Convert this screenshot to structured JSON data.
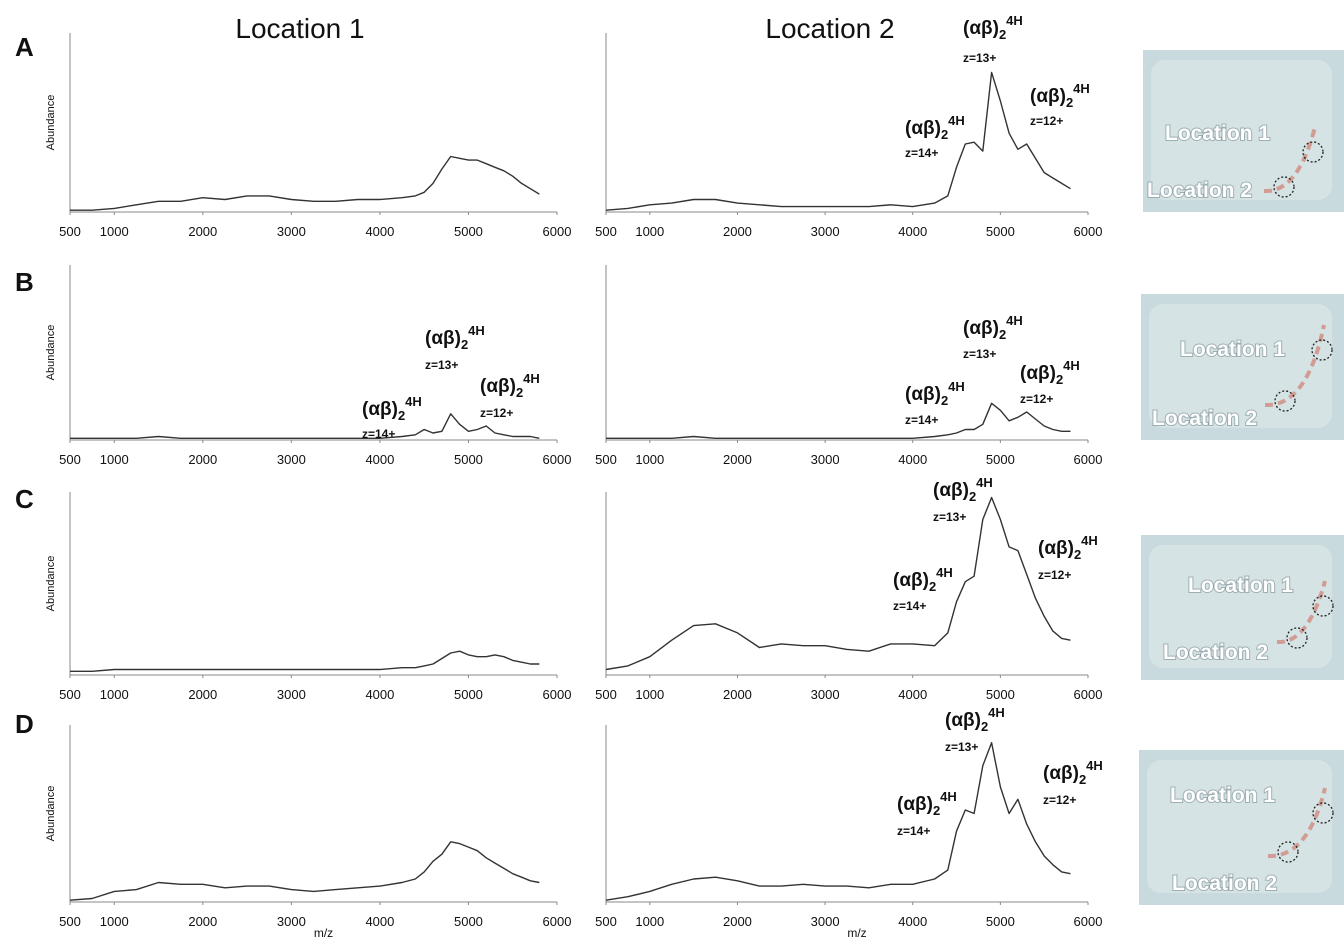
{
  "column_titles": [
    "Location 1",
    "Location 2"
  ],
  "row_labels": [
    "A",
    "B",
    "C",
    "D"
  ],
  "chart_data": [
    {
      "type": "line",
      "ylabel": "Abundance",
      "color": "#333333",
      "xlim": [
        500,
        6000
      ],
      "ylim": [
        0,
        100
      ],
      "xticks": [
        500,
        1000,
        2000,
        3000,
        4000,
        5000,
        6000
      ],
      "x": [
        500,
        750,
        1000,
        1250,
        1500,
        1750,
        2000,
        2250,
        2500,
        2750,
        3000,
        3250,
        3500,
        3750,
        4000,
        4250,
        4400,
        4500,
        4600,
        4700,
        4800,
        4900,
        5000,
        5100,
        5200,
        5300,
        5400,
        5500,
        5600,
        5700,
        5800
      ],
      "values": [
        1,
        1,
        2,
        4,
        6,
        6,
        8,
        7,
        9,
        9,
        7,
        6,
        6,
        7,
        7,
        8,
        9,
        11,
        16,
        24,
        31,
        30,
        29,
        29,
        27,
        25,
        23,
        20,
        16,
        13,
        10
      ]
    },
    {
      "type": "line",
      "color": "#333333",
      "xlim": [
        500,
        6000
      ],
      "ylim": [
        0,
        100
      ],
      "xticks": [
        500,
        1000,
        2000,
        3000,
        4000,
        5000,
        6000
      ],
      "x": [
        500,
        750,
        1000,
        1250,
        1500,
        1750,
        2000,
        2250,
        2500,
        2750,
        3000,
        3250,
        3500,
        3750,
        4000,
        4250,
        4400,
        4500,
        4600,
        4700,
        4800,
        4900,
        5000,
        5100,
        5200,
        5300,
        5400,
        5500,
        5600,
        5700,
        5800
      ],
      "values": [
        1,
        2,
        4,
        5,
        7,
        7,
        5,
        4,
        3,
        3,
        3,
        3,
        3,
        4,
        3,
        5,
        9,
        25,
        38,
        39,
        34,
        78,
        62,
        44,
        35,
        38,
        30,
        22,
        19,
        16,
        13
      ],
      "annotations": [
        {
          "text": "(αβ)",
          "sub": "2",
          "sup": "4H",
          "charge": "z=14+"
        },
        {
          "text": "(αβ)",
          "sub": "2",
          "sup": "4H",
          "charge": "z=13+"
        },
        {
          "text": "(αβ)",
          "sub": "2",
          "sup": "4H",
          "charge": "z=12+"
        }
      ]
    },
    {
      "type": "line",
      "ylabel": "Abundance",
      "color": "#333333",
      "xlim": [
        500,
        6000
      ],
      "ylim": [
        0,
        100
      ],
      "xticks": [
        500,
        1000,
        2000,
        3000,
        4000,
        5000,
        6000
      ],
      "x": [
        500,
        750,
        1000,
        1250,
        1500,
        1750,
        2000,
        2250,
        2500,
        2750,
        3000,
        3250,
        3500,
        3750,
        4000,
        4250,
        4400,
        4500,
        4600,
        4700,
        4800,
        4900,
        5000,
        5100,
        5200,
        5300,
        5400,
        5500,
        5600,
        5700,
        5800
      ],
      "values": [
        1,
        1,
        1,
        1,
        2,
        1,
        1,
        1,
        1,
        1,
        1,
        1,
        1,
        1,
        1,
        2,
        3,
        6,
        4,
        5,
        15,
        9,
        5,
        6,
        8,
        4,
        3,
        2,
        2,
        2,
        1
      ],
      "annotations": [
        {
          "text": "(αβ)",
          "sub": "2",
          "sup": "4H",
          "charge": "z=14+"
        },
        {
          "text": "(αβ)",
          "sub": "2",
          "sup": "4H",
          "charge": "z=13+"
        },
        {
          "text": "(αβ)",
          "sub": "2",
          "sup": "4H",
          "charge": "z=12+"
        }
      ]
    },
    {
      "type": "line",
      "color": "#333333",
      "xlim": [
        500,
        6000
      ],
      "ylim": [
        0,
        100
      ],
      "xticks": [
        500,
        1000,
        2000,
        3000,
        4000,
        5000,
        6000
      ],
      "x": [
        500,
        750,
        1000,
        1250,
        1500,
        1750,
        2000,
        2250,
        2500,
        2750,
        3000,
        3250,
        3500,
        3750,
        4000,
        4250,
        4400,
        4500,
        4600,
        4700,
        4800,
        4900,
        5000,
        5100,
        5200,
        5300,
        5400,
        5500,
        5600,
        5700,
        5800
      ],
      "values": [
        1,
        1,
        1,
        1,
        2,
        1,
        1,
        1,
        1,
        1,
        1,
        1,
        1,
        1,
        1,
        2,
        3,
        4,
        6,
        6,
        9,
        21,
        17,
        11,
        13,
        16,
        12,
        8,
        6,
        5,
        5
      ],
      "annotations": [
        {
          "text": "(αβ)",
          "sub": "2",
          "sup": "4H",
          "charge": "z=14+"
        },
        {
          "text": "(αβ)",
          "sub": "2",
          "sup": "4H",
          "charge": "z=13+"
        },
        {
          "text": "(αβ)",
          "sub": "2",
          "sup": "4H",
          "charge": "z=12+"
        }
      ]
    },
    {
      "type": "line",
      "ylabel": "Abundance",
      "color": "#333333",
      "xlim": [
        500,
        6000
      ],
      "ylim": [
        0,
        100
      ],
      "xticks": [
        500,
        1000,
        2000,
        3000,
        4000,
        5000,
        6000
      ],
      "x": [
        500,
        750,
        1000,
        1250,
        1500,
        1750,
        2000,
        2250,
        2500,
        2750,
        3000,
        3250,
        3500,
        3750,
        4000,
        4250,
        4400,
        4500,
        4600,
        4700,
        4800,
        4900,
        5000,
        5100,
        5200,
        5300,
        5400,
        5500,
        5600,
        5700,
        5800
      ],
      "values": [
        2,
        2,
        3,
        3,
        3,
        3,
        3,
        3,
        3,
        3,
        3,
        3,
        3,
        3,
        3,
        4,
        4,
        5,
        6,
        9,
        12,
        13,
        11,
        10,
        10,
        11,
        10,
        8,
        7,
        6,
        6
      ]
    },
    {
      "type": "line",
      "color": "#333333",
      "xlim": [
        500,
        6000
      ],
      "ylim": [
        0,
        100
      ],
      "xticks": [
        500,
        1000,
        2000,
        3000,
        4000,
        5000,
        6000
      ],
      "x": [
        500,
        750,
        1000,
        1250,
        1500,
        1750,
        2000,
        2250,
        2500,
        2750,
        3000,
        3250,
        3500,
        3750,
        4000,
        4250,
        4400,
        4500,
        4600,
        4700,
        4800,
        4900,
        5000,
        5100,
        5200,
        5300,
        5400,
        5500,
        5600,
        5700,
        5800
      ],
      "values": [
        3,
        5,
        10,
        19,
        27,
        28,
        23,
        15,
        17,
        16,
        16,
        14,
        13,
        17,
        17,
        16,
        23,
        40,
        51,
        54,
        85,
        97,
        85,
        70,
        68,
        55,
        42,
        32,
        24,
        20,
        19
      ],
      "annotations": [
        {
          "text": "(αβ)",
          "sub": "2",
          "sup": "4H",
          "charge": "z=14+"
        },
        {
          "text": "(αβ)",
          "sub": "2",
          "sup": "4H",
          "charge": "z=13+"
        },
        {
          "text": "(αβ)",
          "sub": "2",
          "sup": "4H",
          "charge": "z=12+"
        }
      ]
    },
    {
      "type": "line",
      "ylabel": "Abundance",
      "xlabel": "m/z",
      "color": "#333333",
      "xlim": [
        500,
        6000
      ],
      "ylim": [
        0,
        100
      ],
      "xticks": [
        500,
        1000,
        2000,
        3000,
        4000,
        5000,
        6000
      ],
      "x": [
        500,
        750,
        1000,
        1250,
        1500,
        1750,
        2000,
        2250,
        2500,
        2750,
        3000,
        3250,
        3500,
        3750,
        4000,
        4250,
        4400,
        4500,
        4600,
        4700,
        4800,
        4900,
        5000,
        5100,
        5200,
        5300,
        5400,
        5500,
        5600,
        5700,
        5800
      ],
      "values": [
        1,
        2,
        6,
        7,
        11,
        10,
        10,
        8,
        9,
        9,
        7,
        6,
        7,
        8,
        9,
        11,
        13,
        17,
        23,
        27,
        34,
        33,
        31,
        29,
        25,
        22,
        19,
        16,
        14,
        12,
        11
      ]
    },
    {
      "type": "line",
      "xlabel": "m/z",
      "color": "#333333",
      "xlim": [
        500,
        6000
      ],
      "ylim": [
        0,
        100
      ],
      "xticks": [
        500,
        1000,
        2000,
        3000,
        4000,
        5000,
        6000
      ],
      "x": [
        500,
        750,
        1000,
        1250,
        1500,
        1750,
        2000,
        2250,
        2500,
        2750,
        3000,
        3250,
        3500,
        3750,
        4000,
        4250,
        4400,
        4500,
        4600,
        4700,
        4800,
        4900,
        5000,
        5100,
        5200,
        5300,
        5400,
        5500,
        5600,
        5700,
        5800
      ],
      "values": [
        1,
        3,
        6,
        10,
        13,
        14,
        12,
        9,
        9,
        10,
        9,
        9,
        8,
        10,
        10,
        13,
        18,
        40,
        52,
        50,
        77,
        90,
        65,
        50,
        58,
        44,
        34,
        26,
        21,
        17,
        16
      ],
      "annotations": [
        {
          "text": "(αβ)",
          "sub": "2",
          "sup": "4H",
          "charge": "z=14+"
        },
        {
          "text": "(αβ)",
          "sub": "2",
          "sup": "4H",
          "charge": "z=13+"
        },
        {
          "text": "(αβ)",
          "sub": "2",
          "sup": "4H",
          "charge": "z=12+"
        }
      ]
    }
  ],
  "photos": [
    {
      "labels": [
        "Location 1",
        "Location 2"
      ]
    },
    {
      "labels": [
        "Location 1",
        "Location 2"
      ]
    },
    {
      "labels": [
        "Location 1",
        "Location 2"
      ]
    },
    {
      "labels": [
        "Location 1",
        "Location 2"
      ]
    }
  ]
}
